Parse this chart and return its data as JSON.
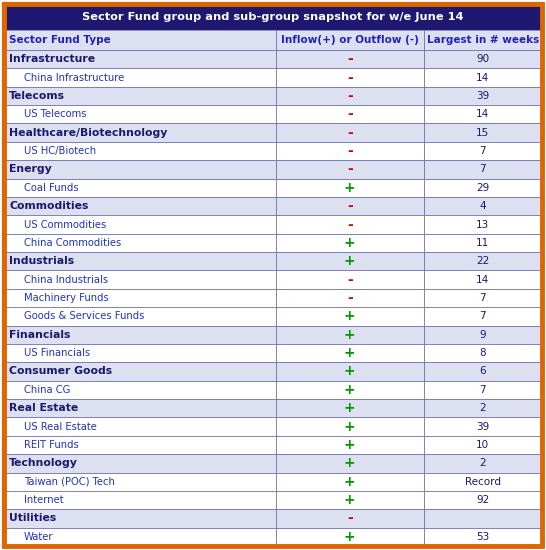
{
  "title": "Sector Fund group and sub-group snapshot for w/e June 14",
  "header": [
    "Sector Fund Type",
    "Inflow(+) or Outflow (-)",
    "Largest in # weeks"
  ],
  "rows": [
    {
      "label": "Infrastructure",
      "indent": false,
      "flow": "-",
      "weeks": "90"
    },
    {
      "label": "China Infrastructure",
      "indent": true,
      "flow": "-",
      "weeks": "14"
    },
    {
      "label": "Telecoms",
      "indent": false,
      "flow": "-",
      "weeks": "39"
    },
    {
      "label": "US Telecoms",
      "indent": true,
      "flow": "-",
      "weeks": "14"
    },
    {
      "label": "Healthcare/Biotechnology",
      "indent": false,
      "flow": "-",
      "weeks": "15"
    },
    {
      "label": "US HC/Biotech",
      "indent": true,
      "flow": "-",
      "weeks": "7"
    },
    {
      "label": "Energy",
      "indent": false,
      "flow": "-",
      "weeks": "7"
    },
    {
      "label": "Coal Funds",
      "indent": true,
      "flow": "+",
      "weeks": "29"
    },
    {
      "label": "Commodities",
      "indent": false,
      "flow": "-",
      "weeks": "4"
    },
    {
      "label": "US Commodities",
      "indent": true,
      "flow": "-",
      "weeks": "13"
    },
    {
      "label": "China Commodities",
      "indent": true,
      "flow": "+",
      "weeks": "11"
    },
    {
      "label": "Industrials",
      "indent": false,
      "flow": "+",
      "weeks": "22"
    },
    {
      "label": "China Industrials",
      "indent": true,
      "flow": "-",
      "weeks": "14"
    },
    {
      "label": "Machinery Funds",
      "indent": true,
      "flow": "-",
      "weeks": "7"
    },
    {
      "label": "Goods & Services Funds",
      "indent": true,
      "flow": "+",
      "weeks": "7"
    },
    {
      "label": "Financials",
      "indent": false,
      "flow": "+",
      "weeks": "9"
    },
    {
      "label": "US Financials",
      "indent": true,
      "flow": "+",
      "weeks": "8"
    },
    {
      "label": "Consumer Goods",
      "indent": false,
      "flow": "+",
      "weeks": "6"
    },
    {
      "label": "China CG",
      "indent": true,
      "flow": "+",
      "weeks": "7"
    },
    {
      "label": "Real Estate",
      "indent": false,
      "flow": "+",
      "weeks": "2"
    },
    {
      "label": "US Real Estate",
      "indent": true,
      "flow": "+",
      "weeks": "39"
    },
    {
      "label": "REIT Funds",
      "indent": true,
      "flow": "+",
      "weeks": "10"
    },
    {
      "label": "Technology",
      "indent": false,
      "flow": "+",
      "weeks": "2"
    },
    {
      "label": "Taiwan (POC) Tech",
      "indent": true,
      "flow": "+",
      "weeks": "Record"
    },
    {
      "label": "Internet",
      "indent": true,
      "flow": "+",
      "weeks": "92"
    },
    {
      "label": "Utilities",
      "indent": false,
      "flow": "-",
      "weeks": ""
    },
    {
      "label": "Water",
      "indent": true,
      "flow": "+",
      "weeks": "53"
    }
  ],
  "title_bg": "#1e1870",
  "title_fg": "#ffffff",
  "header_fg": "#2222bb",
  "group_fg": "#1a1870",
  "sub_fg": "#2233bb",
  "plus_color": "#009900",
  "minus_color": "#cc0000",
  "weeks_fg": "#1a1870",
  "border_color": "#6666aa",
  "outer_border": "#dd6600",
  "row_bg_group": "#dde0f0",
  "row_bg_sub": "#ffffff",
  "header_bg": "#dde0f0",
  "fig_width": 5.46,
  "fig_height": 5.5,
  "dpi": 100
}
